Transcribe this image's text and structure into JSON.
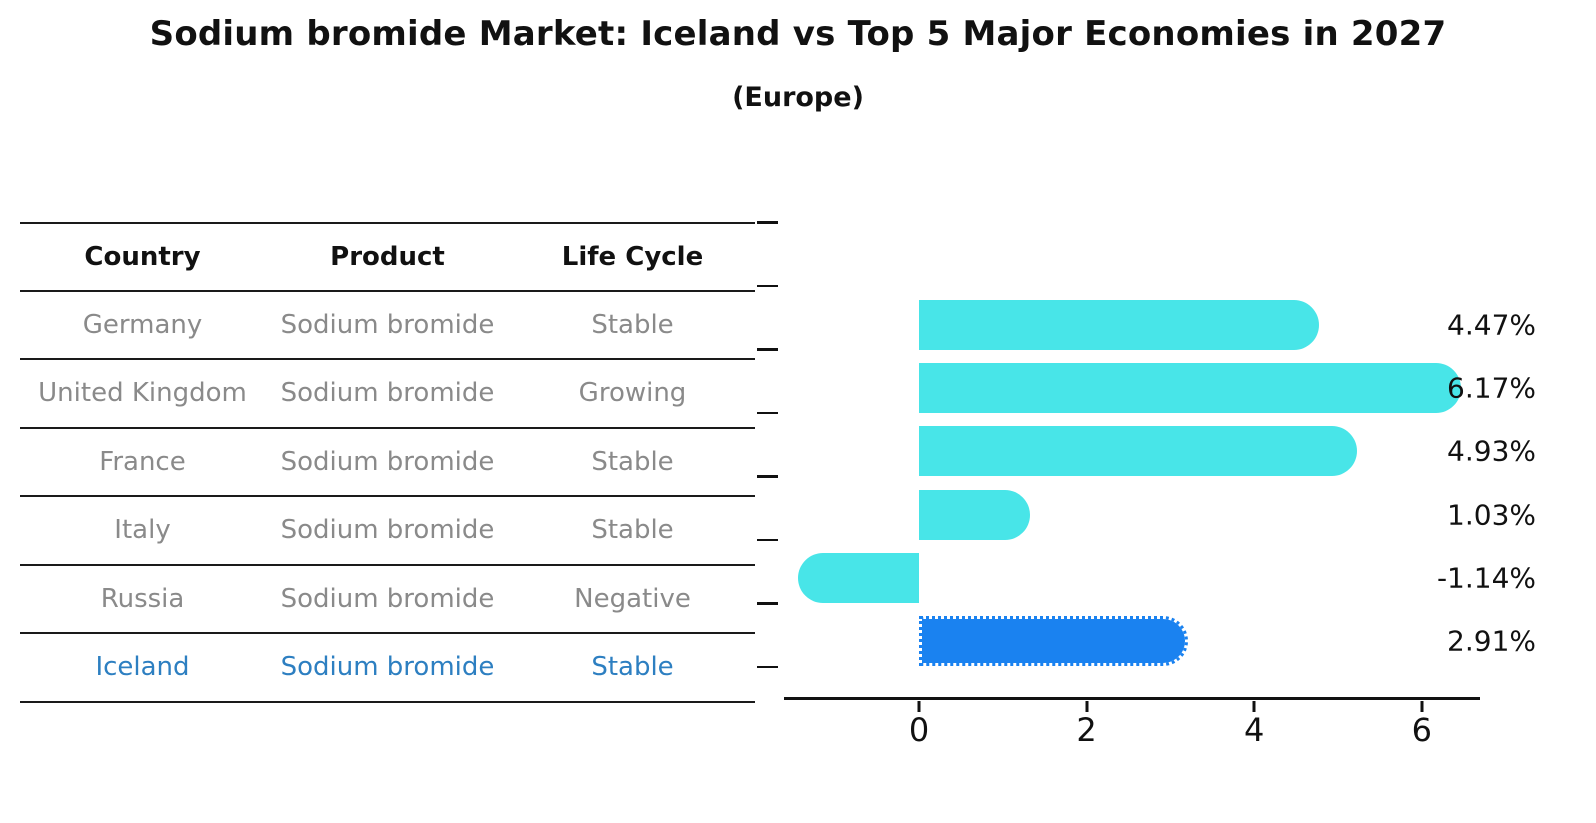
{
  "title": "Sodium bromide Market: Iceland vs Top 5 Major Economies in 2027",
  "subtitle": "(Europe)",
  "colors": {
    "bar_default": "#48E5E8",
    "bar_highlight": "#1A82F0",
    "highlight_text": "#2D7FC1",
    "row_text": "#8A8A8A",
    "header_text": "#111111"
  },
  "table": {
    "headers": [
      "Country",
      "Product",
      "Life Cycle"
    ],
    "rows": [
      {
        "country": "Germany",
        "product": "Sodium bromide",
        "life_cycle": "Stable",
        "highlight": false
      },
      {
        "country": "United Kingdom",
        "product": "Sodium bromide",
        "life_cycle": "Growing",
        "highlight": false
      },
      {
        "country": "France",
        "product": "Sodium bromide",
        "life_cycle": "Stable",
        "highlight": false
      },
      {
        "country": "Italy",
        "product": "Sodium bromide",
        "life_cycle": "Stable",
        "highlight": false
      },
      {
        "country": "Russia",
        "product": "Sodium bromide",
        "life_cycle": "Negative",
        "highlight": false
      },
      {
        "country": "Iceland",
        "product": "Sodium bromide",
        "life_cycle": "Stable",
        "highlight": true
      }
    ]
  },
  "chart_data": {
    "type": "bar",
    "orientation": "horizontal",
    "title": "Sodium bromide Market: Iceland vs Top 5 Major Economies in 2027 (Europe)",
    "categories": [
      "Germany",
      "United Kingdom",
      "France",
      "Italy",
      "Russia",
      "Iceland"
    ],
    "values": [
      4.47,
      6.17,
      4.93,
      1.03,
      -1.14,
      2.91
    ],
    "value_labels": [
      "4.47%",
      "6.17%",
      "4.93%",
      "1.03%",
      "-1.14%",
      "2.91%"
    ],
    "unit": "%",
    "highlight_index": 5,
    "x_ticks": [
      0,
      2,
      4,
      6
    ],
    "xlim": [
      -1.6,
      6.55
    ],
    "xlabel": "",
    "ylabel": "",
    "grid": false,
    "legend": "none"
  }
}
